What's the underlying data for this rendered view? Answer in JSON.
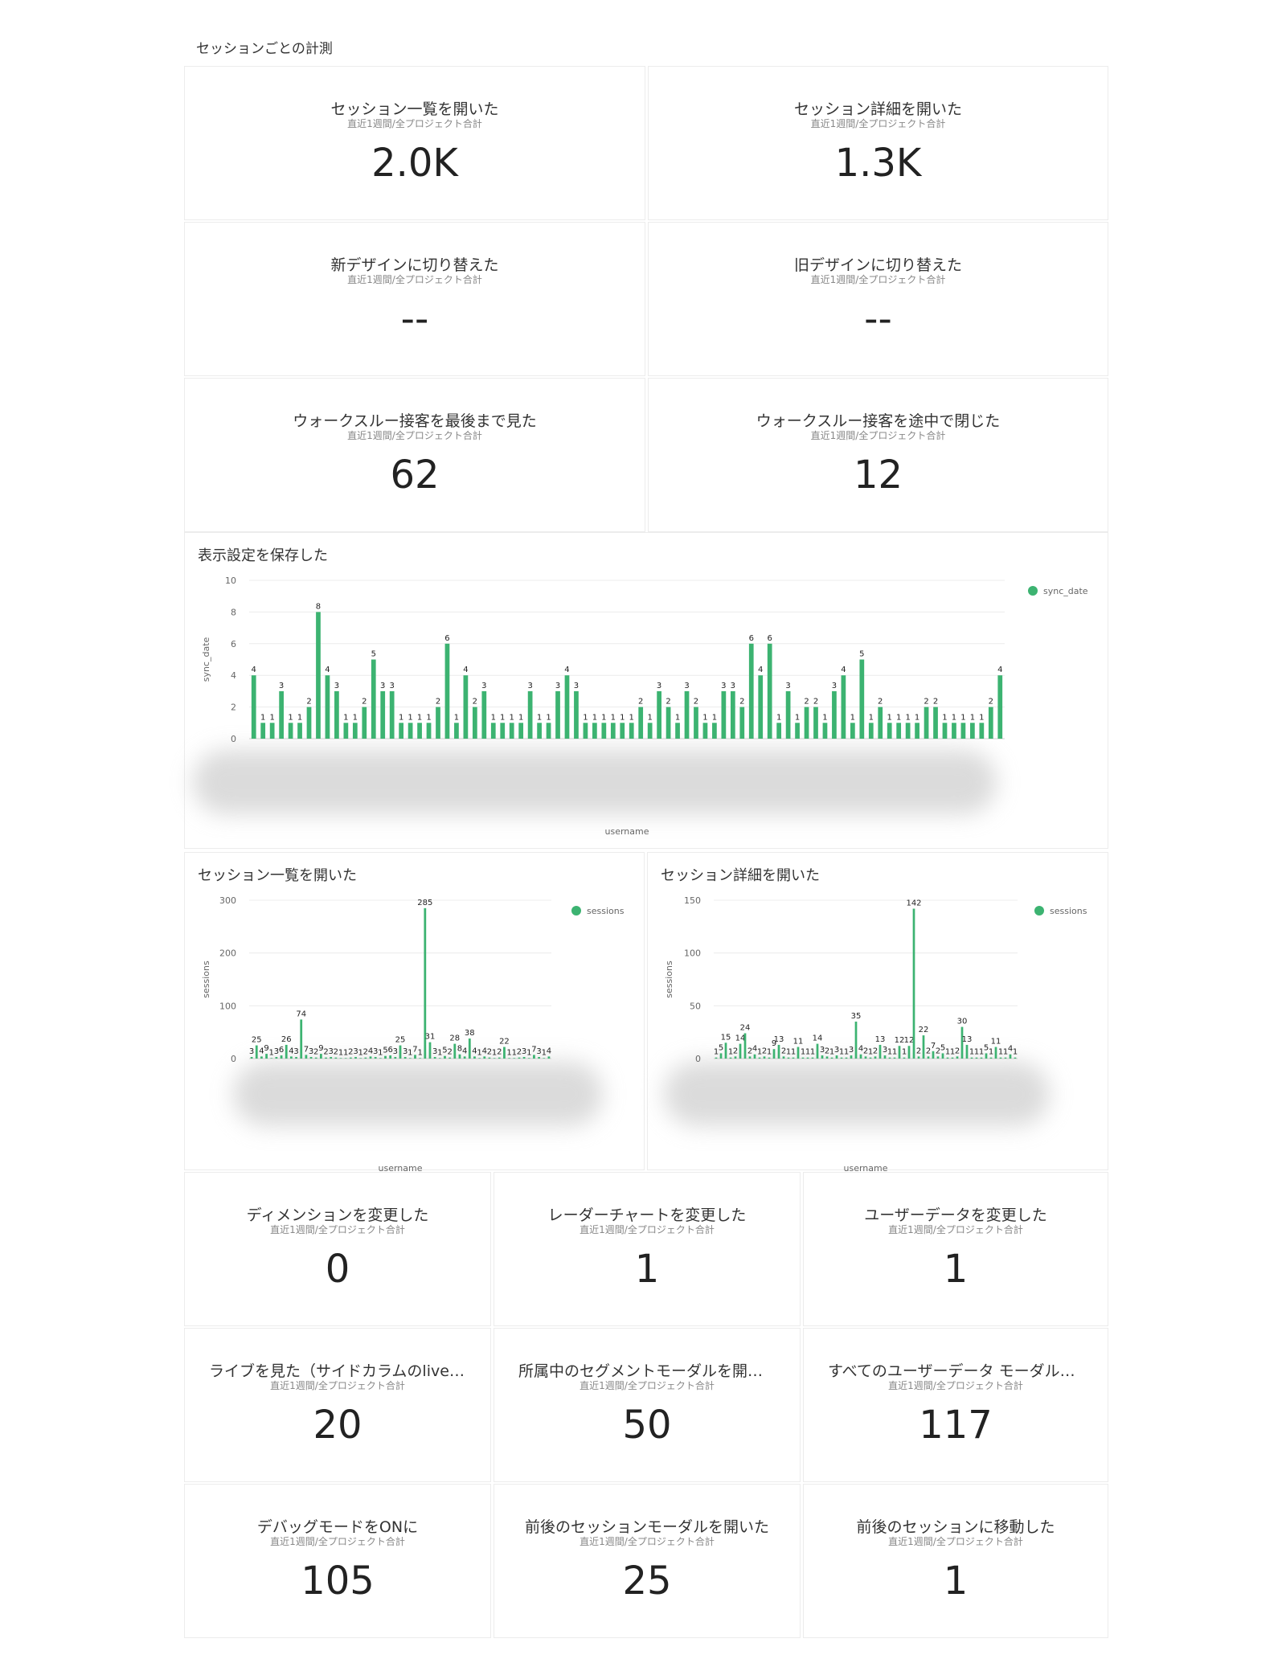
{
  "section_title": "セッションごとの計測",
  "kpi_subtitle": "直近1週間/全プロジェクト合計",
  "kpis_top": [
    {
      "title": "セッション一覧を開いた",
      "value": "2.0K"
    },
    {
      "title": "セッション詳細を開いた",
      "value": "1.3K"
    },
    {
      "title": "新デザインに切り替えた",
      "value": "--"
    },
    {
      "title": "旧デザインに切り替えた",
      "value": "--"
    },
    {
      "title": "ウォークスルー接客を最後まで見た",
      "value": "62"
    },
    {
      "title": "ウォークスルー接客を途中で閉じた",
      "value": "12"
    }
  ],
  "kpis_bottom": [
    {
      "title": "ディメンションを変更した",
      "value": "0"
    },
    {
      "title": "レーダーチャートを変更した",
      "value": "1"
    },
    {
      "title": "ユーザーデータを変更した",
      "value": "1"
    },
    {
      "title": "ライブを見た（サイドカラムのliveス…",
      "value": "20"
    },
    {
      "title": "所属中のセグメントモーダルを開いた",
      "value": "50"
    },
    {
      "title": "すべてのユーザーデータ モーダルを…",
      "value": "117"
    },
    {
      "title": "デバッグモードをONに",
      "value": "105"
    },
    {
      "title": "前後のセッションモーダルを開いた",
      "value": "25"
    },
    {
      "title": "前後のセッションに移動した",
      "value": "1"
    }
  ],
  "charts": {
    "main": {
      "title": "表示設定を保存した"
    },
    "list": {
      "title": "セッション一覧を開いた"
    },
    "detail": {
      "title": "セッション詳細を開いた"
    }
  },
  "chart_data": [
    {
      "type": "bar",
      "title": "表示設定を保存した",
      "xlabel": "username",
      "ylabel": "sync_date",
      "ylim": [
        0,
        10
      ],
      "yticks": [
        0,
        2,
        4,
        6,
        8,
        10
      ],
      "legend_position": "top-right",
      "series": [
        {
          "name": "sync_date",
          "color": "#3cb371",
          "values": [
            4,
            1,
            1,
            3,
            1,
            1,
            2,
            8,
            4,
            3,
            1,
            1,
            2,
            5,
            3,
            3,
            1,
            1,
            1,
            1,
            2,
            6,
            1,
            4,
            2,
            3,
            1,
            1,
            1,
            1,
            3,
            1,
            1,
            3,
            4,
            3,
            1,
            1,
            1,
            1,
            1,
            1,
            2,
            1,
            3,
            2,
            1,
            3,
            2,
            1,
            1,
            3,
            3,
            2,
            6,
            4,
            6,
            1,
            3,
            1,
            2,
            2,
            1,
            3,
            4,
            1,
            5,
            1,
            2,
            1,
            1,
            1,
            1,
            2,
            2,
            1,
            1,
            1,
            1,
            1,
            2,
            4
          ]
        }
      ]
    },
    {
      "type": "bar",
      "title": "セッション一覧を開いた",
      "xlabel": "username",
      "ylabel": "sessions",
      "ylim": [
        0,
        300
      ],
      "yticks": [
        0,
        100,
        200,
        300
      ],
      "legend_position": "top-right",
      "series": [
        {
          "name": "sessions",
          "color": "#3cb371",
          "values": [
            3,
            25,
            4,
            9,
            1,
            3,
            6,
            26,
            4,
            3,
            74,
            7,
            3,
            2,
            9,
            2,
            3,
            2,
            1,
            1,
            2,
            3,
            1,
            2,
            4,
            3,
            1,
            5,
            6,
            3,
            25,
            3,
            1,
            7,
            1,
            285,
            31,
            3,
            1,
            5,
            2,
            28,
            8,
            4,
            38,
            4,
            1,
            4,
            2,
            1,
            2,
            22,
            1,
            1,
            2,
            3,
            1,
            7,
            3,
            1,
            4
          ]
        }
      ]
    },
    {
      "type": "bar",
      "title": "セッション詳細を開いた",
      "xlabel": "username",
      "ylabel": "sessions",
      "ylim": [
        0,
        150
      ],
      "yticks": [
        0,
        50,
        100,
        150
      ],
      "legend_position": "top-right",
      "series": [
        {
          "name": "sessions",
          "color": "#3cb371",
          "values": [
            1,
            5,
            15,
            1,
            2,
            14,
            24,
            2,
            4,
            1,
            2,
            1,
            9,
            13,
            2,
            1,
            1,
            11,
            1,
            1,
            1,
            14,
            3,
            2,
            1,
            3,
            1,
            1,
            3,
            35,
            4,
            2,
            1,
            2,
            13,
            3,
            1,
            1,
            12,
            1,
            12,
            142,
            2,
            22,
            2,
            7,
            2,
            5,
            1,
            1,
            2,
            30,
            13,
            1,
            1,
            1,
            5,
            1,
            11,
            1,
            1,
            4,
            1
          ]
        }
      ]
    }
  ]
}
